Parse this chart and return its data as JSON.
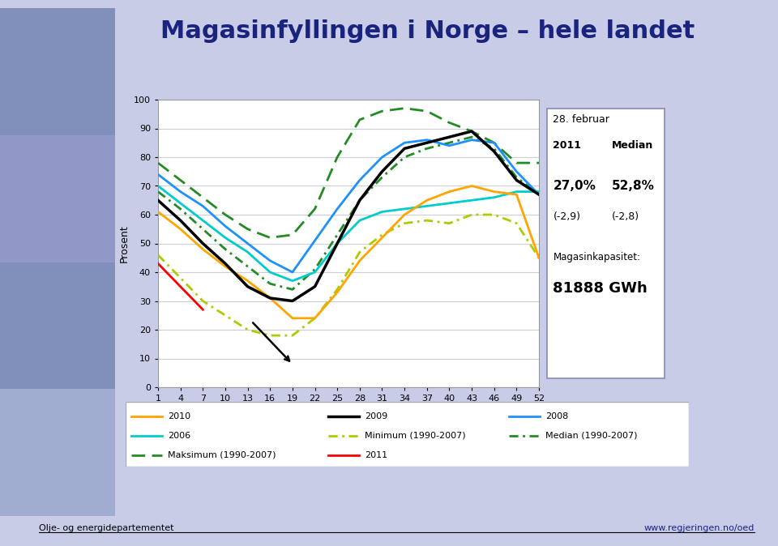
{
  "title": "Magasinfyllingen i Norge – hele landet",
  "ylabel": "Prosent",
  "bg_color": "#c8cce6",
  "plot_bg": "#d8daf0",
  "chart_bg": "#d0d4ee",
  "weeks": [
    1,
    4,
    7,
    10,
    13,
    16,
    19,
    22,
    25,
    28,
    31,
    34,
    37,
    40,
    43,
    46,
    49,
    52
  ],
  "series_2010": [
    61,
    55,
    48,
    42,
    37,
    31,
    24,
    24,
    33,
    44,
    52,
    60,
    65,
    68,
    70,
    68,
    67,
    45
  ],
  "series_2009": [
    65,
    58,
    50,
    43,
    35,
    31,
    30,
    35,
    50,
    65,
    75,
    83,
    85,
    87,
    89,
    82,
    72,
    67
  ],
  "series_2008": [
    74,
    68,
    63,
    56,
    50,
    44,
    40,
    51,
    62,
    72,
    80,
    85,
    86,
    84,
    86,
    85,
    75,
    67
  ],
  "series_2006": [
    70,
    64,
    58,
    52,
    47,
    40,
    37,
    40,
    50,
    58,
    61,
    62,
    63,
    64,
    65,
    66,
    68,
    68
  ],
  "series_min": [
    46,
    38,
    30,
    25,
    20,
    18,
    18,
    24,
    34,
    47,
    53,
    57,
    58,
    57,
    60,
    60,
    57,
    45
  ],
  "series_median": [
    68,
    62,
    55,
    48,
    42,
    36,
    34,
    41,
    53,
    65,
    73,
    80,
    83,
    85,
    87,
    83,
    73,
    67
  ],
  "series_max": [
    78,
    72,
    66,
    60,
    55,
    52,
    53,
    62,
    80,
    93,
    96,
    97,
    96,
    92,
    89,
    85,
    78,
    78
  ],
  "series_2011": [
    43,
    35,
    27,
    null,
    null,
    null,
    null,
    null,
    null,
    null,
    null,
    null,
    null,
    null,
    null,
    null,
    null,
    null
  ],
  "xlim": [
    1,
    52
  ],
  "ylim": [
    0,
    100
  ],
  "xticks": [
    1,
    4,
    7,
    10,
    13,
    16,
    19,
    22,
    25,
    28,
    31,
    34,
    37,
    40,
    43,
    46,
    49,
    52
  ],
  "yticks": [
    0,
    10,
    20,
    30,
    40,
    50,
    60,
    70,
    80,
    90,
    100
  ],
  "info_line1": "28. februar",
  "info_line2a": "2011",
  "info_line2b": "Median",
  "info_line3a": "27,0%",
  "info_line3b": "52,8%",
  "info_line4a": "(-2,9)",
  "info_line4b": "(-2,8)",
  "info_line5": "Magasinkapasitet:",
  "info_line6": "81888 GWh",
  "footer_left": "Olje- og energidepartementet",
  "footer_right": "www.regjeringen.no/oed",
  "title_color": "#1a237e",
  "title_fontsize": 22
}
